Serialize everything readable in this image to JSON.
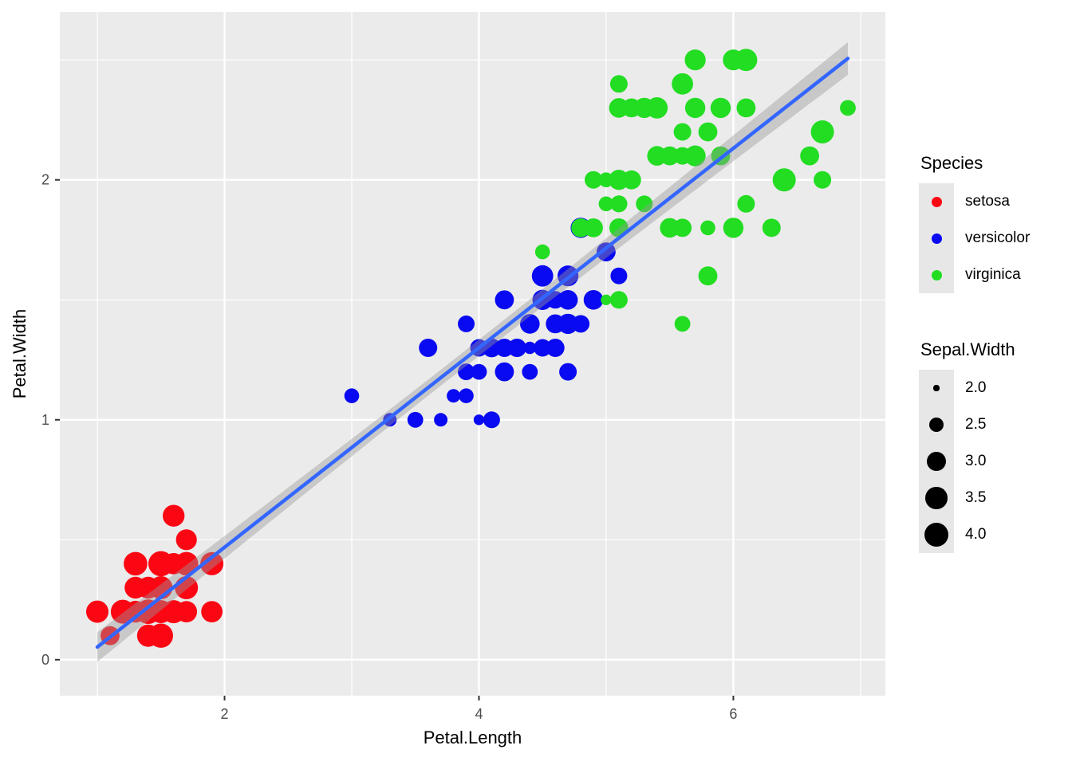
{
  "chart_data": {
    "type": "scatter",
    "title": "",
    "xlabel": "Petal.Length",
    "ylabel": "Petal.Width",
    "xlim": [
      0.705,
      7.195
    ],
    "ylim": [
      -0.15,
      2.7
    ],
    "x_major_ticks": [
      2,
      4,
      6
    ],
    "y_major_ticks": [
      0,
      1,
      2
    ],
    "x_minor_ticks": [
      1,
      3,
      5,
      7
    ],
    "y_minor_ticks": [
      0.5,
      1.5,
      2.5
    ],
    "grid": true,
    "legend_position": "right",
    "panel_bg": "#EBEBEB",
    "grid_color": "#FFFFFF",
    "tick_color": "#333333",
    "tick_label_color": "#4D4D4D",
    "size_scale": {
      "label": "Sepal.Width",
      "domain": [
        2.0,
        4.4
      ],
      "breaks": [
        2.0,
        2.5,
        3.0,
        3.5,
        4.0
      ]
    },
    "series": [
      {
        "name": "setosa",
        "color": "#FB0713",
        "points": [
          [
            1.4,
            0.2,
            3.5
          ],
          [
            1.4,
            0.2,
            3.0
          ],
          [
            1.3,
            0.2,
            3.2
          ],
          [
            1.5,
            0.2,
            3.1
          ],
          [
            1.4,
            0.2,
            3.6
          ],
          [
            1.7,
            0.4,
            3.9
          ],
          [
            1.4,
            0.3,
            3.4
          ],
          [
            1.5,
            0.2,
            3.4
          ],
          [
            1.4,
            0.2,
            2.9
          ],
          [
            1.5,
            0.1,
            3.1
          ],
          [
            1.5,
            0.2,
            3.7
          ],
          [
            1.6,
            0.2,
            3.4
          ],
          [
            1.4,
            0.1,
            3.0
          ],
          [
            1.1,
            0.1,
            3.0
          ],
          [
            1.2,
            0.2,
            4.0
          ],
          [
            1.5,
            0.4,
            4.4
          ],
          [
            1.3,
            0.4,
            3.9
          ],
          [
            1.4,
            0.3,
            3.5
          ],
          [
            1.7,
            0.3,
            3.8
          ],
          [
            1.5,
            0.3,
            3.8
          ],
          [
            1.7,
            0.2,
            3.4
          ],
          [
            1.5,
            0.4,
            3.7
          ],
          [
            1.0,
            0.2,
            3.6
          ],
          [
            1.7,
            0.5,
            3.3
          ],
          [
            1.9,
            0.2,
            3.4
          ],
          [
            1.6,
            0.2,
            3.0
          ],
          [
            1.6,
            0.4,
            3.4
          ],
          [
            1.5,
            0.2,
            3.5
          ],
          [
            1.4,
            0.2,
            3.4
          ],
          [
            1.6,
            0.2,
            3.2
          ],
          [
            1.6,
            0.2,
            3.1
          ],
          [
            1.5,
            0.4,
            3.4
          ],
          [
            1.5,
            0.1,
            4.1
          ],
          [
            1.4,
            0.2,
            4.2
          ],
          [
            1.5,
            0.2,
            3.1
          ],
          [
            1.2,
            0.2,
            3.2
          ],
          [
            1.3,
            0.2,
            3.5
          ],
          [
            1.4,
            0.1,
            3.6
          ],
          [
            1.3,
            0.2,
            3.0
          ],
          [
            1.5,
            0.2,
            3.4
          ],
          [
            1.3,
            0.3,
            3.5
          ],
          [
            1.3,
            0.3,
            2.3
          ],
          [
            1.3,
            0.2,
            3.2
          ],
          [
            1.6,
            0.6,
            3.5
          ],
          [
            1.9,
            0.4,
            3.8
          ],
          [
            1.4,
            0.3,
            3.0
          ],
          [
            1.6,
            0.2,
            3.8
          ],
          [
            1.4,
            0.2,
            3.2
          ],
          [
            1.5,
            0.2,
            3.7
          ],
          [
            1.4,
            0.2,
            3.3
          ]
        ]
      },
      {
        "name": "versicolor",
        "color": "#0909F2",
        "points": [
          [
            4.7,
            1.4,
            3.2
          ],
          [
            4.5,
            1.5,
            3.2
          ],
          [
            4.9,
            1.5,
            3.1
          ],
          [
            4.0,
            1.3,
            2.3
          ],
          [
            4.6,
            1.5,
            2.8
          ],
          [
            4.5,
            1.3,
            2.8
          ],
          [
            4.7,
            1.6,
            3.3
          ],
          [
            3.3,
            1.0,
            2.4
          ],
          [
            4.6,
            1.3,
            2.9
          ],
          [
            3.9,
            1.4,
            2.7
          ],
          [
            3.5,
            1.0,
            2.0
          ],
          [
            4.2,
            1.5,
            3.0
          ],
          [
            4.0,
            1.0,
            2.2
          ],
          [
            4.7,
            1.4,
            2.9
          ],
          [
            3.6,
            1.3,
            2.9
          ],
          [
            4.4,
            1.4,
            3.1
          ],
          [
            4.5,
            1.5,
            3.0
          ],
          [
            4.1,
            1.0,
            2.7
          ],
          [
            4.5,
            1.5,
            2.2
          ],
          [
            3.9,
            1.1,
            2.5
          ],
          [
            4.8,
            1.8,
            3.2
          ],
          [
            4.0,
            1.3,
            2.8
          ],
          [
            4.9,
            1.5,
            2.5
          ],
          [
            4.7,
            1.2,
            2.8
          ],
          [
            4.3,
            1.3,
            2.9
          ],
          [
            4.4,
            1.4,
            3.0
          ],
          [
            4.8,
            1.4,
            2.8
          ],
          [
            5.0,
            1.7,
            3.0
          ],
          [
            4.5,
            1.5,
            2.9
          ],
          [
            3.5,
            1.0,
            2.6
          ],
          [
            3.8,
            1.1,
            2.4
          ],
          [
            3.7,
            1.0,
            2.4
          ],
          [
            3.9,
            1.2,
            2.7
          ],
          [
            5.1,
            1.6,
            2.7
          ],
          [
            4.5,
            1.5,
            3.0
          ],
          [
            4.5,
            1.6,
            3.4
          ],
          [
            4.7,
            1.5,
            3.1
          ],
          [
            4.4,
            1.3,
            2.3
          ],
          [
            4.1,
            1.3,
            3.0
          ],
          [
            4.0,
            1.3,
            2.5
          ],
          [
            4.4,
            1.2,
            2.6
          ],
          [
            4.6,
            1.4,
            3.0
          ],
          [
            4.0,
            1.2,
            2.6
          ],
          [
            3.3,
            1.0,
            2.3
          ],
          [
            4.2,
            1.3,
            2.7
          ],
          [
            4.2,
            1.2,
            3.0
          ],
          [
            4.2,
            1.3,
            2.9
          ],
          [
            4.3,
            1.3,
            2.9
          ],
          [
            3.0,
            1.1,
            2.5
          ],
          [
            4.1,
            1.3,
            2.8
          ]
        ]
      },
      {
        "name": "virginica",
        "color": "#22DD22",
        "points": [
          [
            6.0,
            2.5,
            3.3
          ],
          [
            5.1,
            1.9,
            2.7
          ],
          [
            5.9,
            2.1,
            3.0
          ],
          [
            5.6,
            1.8,
            2.9
          ],
          [
            5.8,
            2.2,
            3.0
          ],
          [
            6.6,
            2.1,
            3.0
          ],
          [
            4.5,
            1.7,
            2.5
          ],
          [
            6.3,
            1.8,
            2.9
          ],
          [
            5.8,
            1.8,
            2.5
          ],
          [
            6.1,
            2.5,
            3.6
          ],
          [
            5.1,
            2.0,
            3.2
          ],
          [
            5.3,
            1.9,
            2.7
          ],
          [
            5.5,
            2.1,
            3.0
          ],
          [
            5.0,
            2.0,
            2.5
          ],
          [
            5.1,
            2.4,
            2.8
          ],
          [
            5.3,
            2.3,
            3.2
          ],
          [
            5.5,
            1.8,
            3.0
          ],
          [
            6.7,
            2.2,
            3.8
          ],
          [
            6.9,
            2.3,
            2.6
          ],
          [
            5.0,
            1.5,
            2.2
          ],
          [
            5.7,
            2.3,
            3.2
          ],
          [
            4.9,
            2.0,
            2.8
          ],
          [
            6.7,
            2.0,
            2.8
          ],
          [
            4.9,
            1.8,
            2.7
          ],
          [
            5.7,
            2.1,
            3.3
          ],
          [
            6.0,
            1.8,
            3.2
          ],
          [
            4.8,
            1.8,
            2.8
          ],
          [
            4.9,
            1.8,
            3.0
          ],
          [
            5.6,
            2.1,
            2.8
          ],
          [
            5.8,
            1.6,
            3.0
          ],
          [
            6.1,
            1.9,
            2.8
          ],
          [
            6.4,
            2.0,
            3.8
          ],
          [
            5.6,
            2.2,
            2.8
          ],
          [
            5.1,
            1.5,
            2.8
          ],
          [
            5.6,
            1.4,
            2.6
          ],
          [
            6.1,
            2.3,
            3.0
          ],
          [
            5.6,
            2.4,
            3.4
          ],
          [
            5.5,
            1.8,
            3.1
          ],
          [
            4.8,
            1.8,
            3.0
          ],
          [
            5.4,
            2.1,
            3.1
          ],
          [
            5.6,
            2.4,
            3.1
          ],
          [
            5.1,
            2.3,
            3.1
          ],
          [
            5.1,
            1.9,
            2.7
          ],
          [
            5.9,
            2.3,
            3.2
          ],
          [
            5.7,
            2.5,
            3.3
          ],
          [
            5.2,
            2.3,
            3.0
          ],
          [
            5.0,
            1.9,
            2.5
          ],
          [
            5.2,
            2.0,
            3.0
          ],
          [
            5.4,
            2.3,
            3.4
          ],
          [
            5.1,
            1.8,
            3.0
          ]
        ]
      }
    ],
    "smooth": {
      "method": "lm",
      "intercept": -0.3631,
      "slope": 0.4158,
      "x_range": [
        1.0,
        6.9
      ],
      "line_color": "#3366FF",
      "band_color": "#999999",
      "band_opacity": 0.42,
      "sigma": 0.2065,
      "n": 150,
      "x_mean": 3.758,
      "sxx": 464.325,
      "t_crit": 1.976
    }
  },
  "legend_species": {
    "title": "Species",
    "items": [
      {
        "label": "setosa",
        "color": "#FB0713"
      },
      {
        "label": "versicolor",
        "color": "#0909F2"
      },
      {
        "label": "virginica",
        "color": "#22DD22"
      }
    ]
  },
  "legend_size": {
    "title": "Sepal.Width",
    "dot_color": "#000000",
    "items": [
      {
        "label": "2.0",
        "value": 2.0
      },
      {
        "label": "2.5",
        "value": 2.5
      },
      {
        "label": "3.0",
        "value": 3.0
      },
      {
        "label": "3.5",
        "value": 3.5
      },
      {
        "label": "4.0",
        "value": 4.0
      }
    ]
  }
}
